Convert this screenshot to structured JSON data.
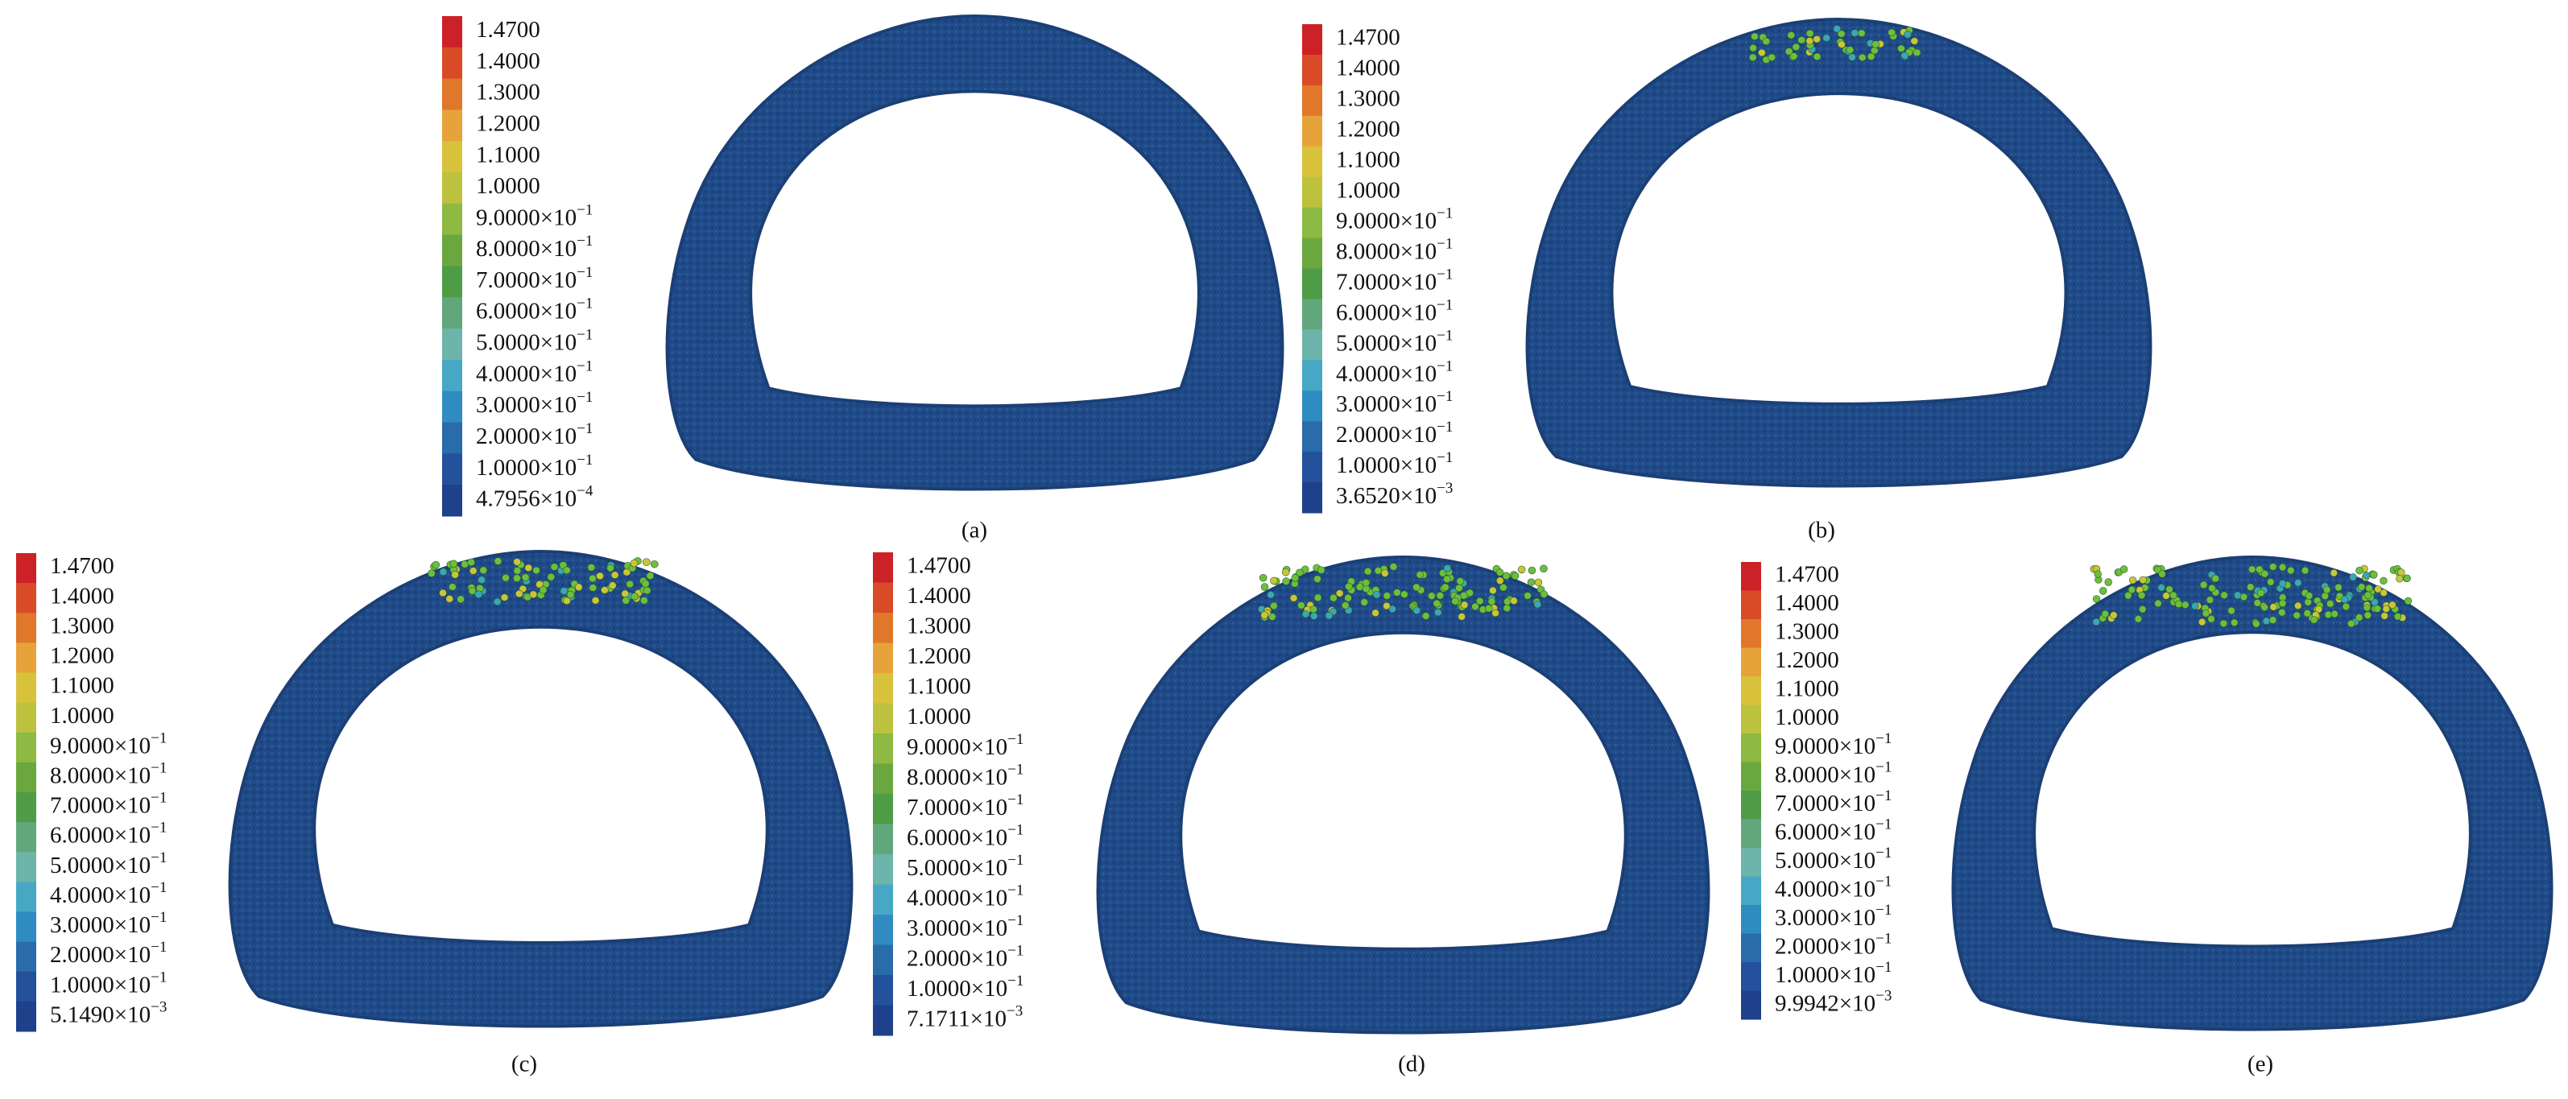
{
  "panels": [
    {
      "caption": "(a)",
      "legend": [
        "1.4700",
        "1.4000",
        "1.3000",
        "1.2000",
        "1.1000",
        "1.0000",
        {
          "mantissa": "9.0000×10",
          "exponent": "−1"
        },
        {
          "mantissa": "8.0000×10",
          "exponent": "−1"
        },
        {
          "mantissa": "7.0000×10",
          "exponent": "−1"
        },
        {
          "mantissa": "6.0000×10",
          "exponent": "−1"
        },
        {
          "mantissa": "5.0000×10",
          "exponent": "−1"
        },
        {
          "mantissa": "4.0000×10",
          "exponent": "−1"
        },
        {
          "mantissa": "3.0000×10",
          "exponent": "−1"
        },
        {
          "mantissa": "2.0000×10",
          "exponent": "−1"
        },
        {
          "mantissa": "1.0000×10",
          "exponent": "−1"
        },
        {
          "mantissa": "4.7956×10",
          "exponent": "−4"
        }
      ]
    },
    {
      "caption": "(b)",
      "legend": [
        "1.4700",
        "1.4000",
        "1.3000",
        "1.2000",
        "1.1000",
        "1.0000",
        {
          "mantissa": "9.0000×10",
          "exponent": "−1"
        },
        {
          "mantissa": "8.0000×10",
          "exponent": "−1"
        },
        {
          "mantissa": "7.0000×10",
          "exponent": "−1"
        },
        {
          "mantissa": "6.0000×10",
          "exponent": "−1"
        },
        {
          "mantissa": "5.0000×10",
          "exponent": "−1"
        },
        {
          "mantissa": "4.0000×10",
          "exponent": "−1"
        },
        {
          "mantissa": "3.0000×10",
          "exponent": "−1"
        },
        {
          "mantissa": "2.0000×10",
          "exponent": "−1"
        },
        {
          "mantissa": "1.0000×10",
          "exponent": "−1"
        },
        {
          "mantissa": "3.6520×10",
          "exponent": "−3"
        }
      ]
    },
    {
      "caption": "(c)",
      "legend": [
        "1.4700",
        "1.4000",
        "1.3000",
        "1.2000",
        "1.1000",
        "1.0000",
        {
          "mantissa": "9.0000×10",
          "exponent": "−1"
        },
        {
          "mantissa": "8.0000×10",
          "exponent": "−1"
        },
        {
          "mantissa": "7.0000×10",
          "exponent": "−1"
        },
        {
          "mantissa": "6.0000×10",
          "exponent": "−1"
        },
        {
          "mantissa": "5.0000×10",
          "exponent": "−1"
        },
        {
          "mantissa": "4.0000×10",
          "exponent": "−1"
        },
        {
          "mantissa": "3.0000×10",
          "exponent": "−1"
        },
        {
          "mantissa": "2.0000×10",
          "exponent": "−1"
        },
        {
          "mantissa": "1.0000×10",
          "exponent": "−1"
        },
        {
          "mantissa": "5.1490×10",
          "exponent": "−3"
        }
      ]
    },
    {
      "caption": "(d)",
      "legend": [
        "1.4700",
        "1.4000",
        "1.3000",
        "1.2000",
        "1.1000",
        "1.0000",
        {
          "mantissa": "9.0000×10",
          "exponent": "−1"
        },
        {
          "mantissa": "8.0000×10",
          "exponent": "−1"
        },
        {
          "mantissa": "7.0000×10",
          "exponent": "−1"
        },
        {
          "mantissa": "6.0000×10",
          "exponent": "−1"
        },
        {
          "mantissa": "5.0000×10",
          "exponent": "−1"
        },
        {
          "mantissa": "4.0000×10",
          "exponent": "−1"
        },
        {
          "mantissa": "3.0000×10",
          "exponent": "−1"
        },
        {
          "mantissa": "2.0000×10",
          "exponent": "−1"
        },
        {
          "mantissa": "1.0000×10",
          "exponent": "−1"
        },
        {
          "mantissa": "7.1711×10",
          "exponent": "−3"
        }
      ]
    },
    {
      "caption": "(e)",
      "legend": [
        "1.4700",
        "1.4000",
        "1.3000",
        "1.2000",
        "1.1000",
        "1.0000",
        {
          "mantissa": "9.0000×10",
          "exponent": "−1"
        },
        {
          "mantissa": "8.0000×10",
          "exponent": "−1"
        },
        {
          "mantissa": "7.0000×10",
          "exponent": "−1"
        },
        {
          "mantissa": "6.0000×10",
          "exponent": "−1"
        },
        {
          "mantissa": "5.0000×10",
          "exponent": "−1"
        },
        {
          "mantissa": "4.0000×10",
          "exponent": "−1"
        },
        {
          "mantissa": "3.0000×10",
          "exponent": "−1"
        },
        {
          "mantissa": "2.0000×10",
          "exponent": "−1"
        },
        {
          "mantissa": "1.0000×10",
          "exponent": "−1"
        },
        {
          "mantissa": "9.9942×10",
          "exponent": "−3"
        }
      ]
    }
  ]
}
